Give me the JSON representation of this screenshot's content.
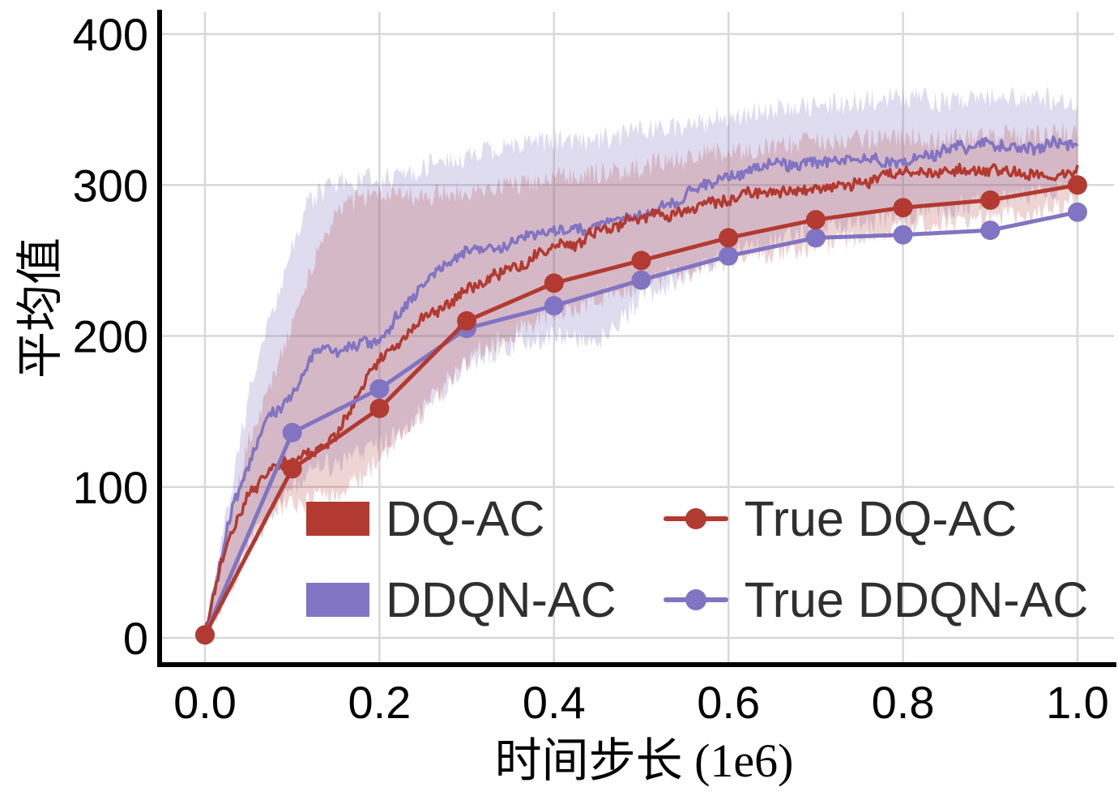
{
  "chart_data": {
    "type": "line",
    "title": "",
    "xlabel": "时间步长 (1e6)",
    "ylabel": "平均值",
    "xlim": [
      0.0,
      1.0
    ],
    "ylim": [
      0,
      400
    ],
    "grid": true,
    "grid_color": "#d8d8d8",
    "xticks": [
      0.0,
      0.2,
      0.4,
      0.6,
      0.8,
      1.0
    ],
    "xtick_labels": [
      "0.0",
      "0.2",
      "0.4",
      "0.6",
      "0.8",
      "1.0"
    ],
    "yticks": [
      0,
      100,
      200,
      300,
      400
    ],
    "ytick_labels": [
      "0",
      "100",
      "200",
      "300",
      "400"
    ],
    "colors": {
      "red": "#b23a30",
      "purple": "#8174c2"
    },
    "series": [
      {
        "name": "DQ-AC",
        "type": "noisy-band",
        "color": "#b23a30",
        "band_alpha": 0.22,
        "seed": 101,
        "x_band": [
          0,
          0.05,
          0.08,
          0.1,
          0.13,
          0.15,
          0.18,
          0.2,
          0.25,
          0.3,
          0.35,
          0.4,
          0.45,
          0.5,
          0.55,
          0.6,
          0.65,
          0.7,
          0.75,
          0.8,
          0.85,
          0.9,
          0.95,
          1.0
        ],
        "upper": [
          5,
          130,
          175,
          210,
          255,
          285,
          292,
          295,
          292,
          296,
          300,
          306,
          308,
          312,
          318,
          322,
          325,
          328,
          330,
          332,
          330,
          332,
          333,
          335
        ],
        "lower": [
          0,
          60,
          85,
          88,
          92,
          95,
          105,
          120,
          150,
          185,
          202,
          215,
          225,
          235,
          242,
          250,
          255,
          260,
          265,
          272,
          275,
          278,
          282,
          290
        ],
        "x_mean": [
          0,
          0.02,
          0.05,
          0.08,
          0.1,
          0.13,
          0.15,
          0.18,
          0.2,
          0.23,
          0.25,
          0.3,
          0.35,
          0.4,
          0.45,
          0.5,
          0.55,
          0.6,
          0.65,
          0.7,
          0.75,
          0.8,
          0.85,
          0.9,
          0.95,
          1.0
        ],
        "mean": [
          2,
          55,
          100,
          115,
          120,
          126,
          134,
          165,
          186,
          202,
          212,
          235,
          246,
          262,
          268,
          278,
          285,
          292,
          296,
          300,
          303,
          308,
          305,
          307,
          308,
          313
        ]
      },
      {
        "name": "DDQN-AC",
        "type": "noisy-band",
        "color": "#8174c2",
        "band_alpha": 0.25,
        "seed": 202,
        "x_band": [
          0,
          0.05,
          0.07,
          0.1,
          0.12,
          0.15,
          0.18,
          0.2,
          0.25,
          0.3,
          0.35,
          0.4,
          0.45,
          0.5,
          0.55,
          0.6,
          0.65,
          0.7,
          0.75,
          0.8,
          0.85,
          0.9,
          0.95,
          1.0
        ],
        "upper": [
          5,
          160,
          200,
          262,
          290,
          300,
          305,
          302,
          312,
          320,
          325,
          330,
          330,
          336,
          340,
          345,
          350,
          352,
          355,
          358,
          355,
          357,
          358,
          356
        ],
        "lower": [
          0,
          60,
          80,
          100,
          110,
          116,
          122,
          126,
          150,
          180,
          195,
          200,
          195,
          225,
          240,
          255,
          262,
          270,
          275,
          280,
          285,
          290,
          295,
          300
        ],
        "x_mean": [
          0,
          0.03,
          0.05,
          0.07,
          0.09,
          0.1,
          0.12,
          0.14,
          0.16,
          0.18,
          0.2,
          0.22,
          0.25,
          0.28,
          0.3,
          0.35,
          0.4,
          0.45,
          0.5,
          0.55,
          0.6,
          0.65,
          0.7,
          0.75,
          0.8,
          0.85,
          0.9,
          0.95,
          1.0
        ],
        "mean": [
          2,
          85,
          110,
          140,
          152,
          158,
          185,
          190,
          188,
          192,
          196,
          212,
          236,
          250,
          255,
          262,
          268,
          272,
          280,
          292,
          305,
          312,
          315,
          315,
          318,
          322,
          326,
          328,
          331
        ]
      },
      {
        "name": "True DQ-AC",
        "type": "line-markers",
        "color": "#b23a30",
        "x": [
          0,
          0.1,
          0.2,
          0.3,
          0.4,
          0.5,
          0.6,
          0.7,
          0.8,
          0.9,
          1.0
        ],
        "y": [
          2,
          112,
          152,
          210,
          235,
          250,
          265,
          277,
          285,
          290,
          300
        ]
      },
      {
        "name": "True DDQN-AC",
        "type": "line-markers",
        "color": "#8174c2",
        "x": [
          0,
          0.1,
          0.2,
          0.3,
          0.4,
          0.5,
          0.6,
          0.7,
          0.8,
          0.9,
          1.0
        ],
        "y": [
          2,
          136,
          165,
          205,
          220,
          237,
          253,
          265,
          267,
          270,
          282
        ]
      }
    ],
    "legend": {
      "position": "lower-center",
      "entries": [
        {
          "label": "DQ-AC",
          "swatch": "patch",
          "color": "#b23a30"
        },
        {
          "label": "DDQN-AC",
          "swatch": "patch",
          "color": "#8174c2"
        },
        {
          "label": "True DQ-AC",
          "swatch": "line-marker",
          "color": "#b23a30"
        },
        {
          "label": "True DDQN-AC",
          "swatch": "line-marker",
          "color": "#8174c2"
        }
      ]
    }
  }
}
